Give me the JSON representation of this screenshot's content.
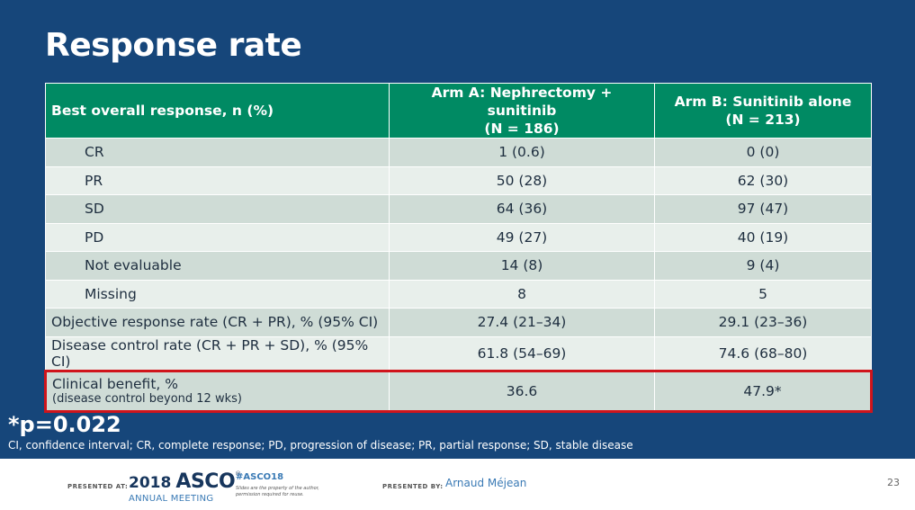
{
  "slide": {
    "title": "Response rate",
    "pvalue_note": "*p=0.022",
    "abbreviations": "CI, confidence interval; CR, complete response; PD, progression of disease; PR, partial response; SD, stable disease"
  },
  "table": {
    "headers": {
      "label": "Best overall response, n (%)",
      "arm_a_line1": "Arm A: Nephrectomy + sunitinib",
      "arm_a_line2": "(N = 186)",
      "arm_b_line1": "Arm B: Sunitinib alone",
      "arm_b_line2": "(N = 213)"
    },
    "rows": [
      {
        "label": "CR",
        "arm_a": "1 (0.6)",
        "arm_b": "0 (0)"
      },
      {
        "label": "PR",
        "arm_a": "50 (28)",
        "arm_b": "62 (30)"
      },
      {
        "label": "SD",
        "arm_a": "64 (36)",
        "arm_b": "97 (47)"
      },
      {
        "label": "PD",
        "arm_a": "49 (27)",
        "arm_b": "40 (19)"
      },
      {
        "label": "Not evaluable",
        "arm_a": "14 (8)",
        "arm_b": "9 (4)"
      },
      {
        "label": "Missing",
        "arm_a": "8",
        "arm_b": "5"
      },
      {
        "label": "Objective response rate (CR + PR), % (95% CI)",
        "arm_a": "27.4 (21–34)",
        "arm_b": "29.1 (23–36)"
      },
      {
        "label": "Disease control rate (CR + PR + SD), % (95% CI)",
        "arm_a": "61.8 (54–69)",
        "arm_b": "74.6 (68–80)"
      },
      {
        "label": "Clinical benefit, %",
        "sublabel": "(disease control beyond 12 wks)",
        "arm_a": "36.6",
        "arm_b": "47.9*"
      }
    ]
  },
  "footer": {
    "presented_at": "PRESENTED AT:",
    "logo_year": "2018",
    "logo_name": "ASCO",
    "logo_reg": "®",
    "logo_sub": "ANNUAL MEETING",
    "hashtag": "#ASCO18",
    "slide_property": "Slides are the property of the author, permission required for reuse.",
    "presented_by": "PRESENTED BY:",
    "presenter": "Arnaud Méjean",
    "page_number": "23"
  },
  "colors": {
    "background": "#16467a",
    "header_green": "#008a63",
    "highlight_red": "#d0141b",
    "row_dark": "#cfdcd6",
    "row_light": "#e8efeb"
  }
}
